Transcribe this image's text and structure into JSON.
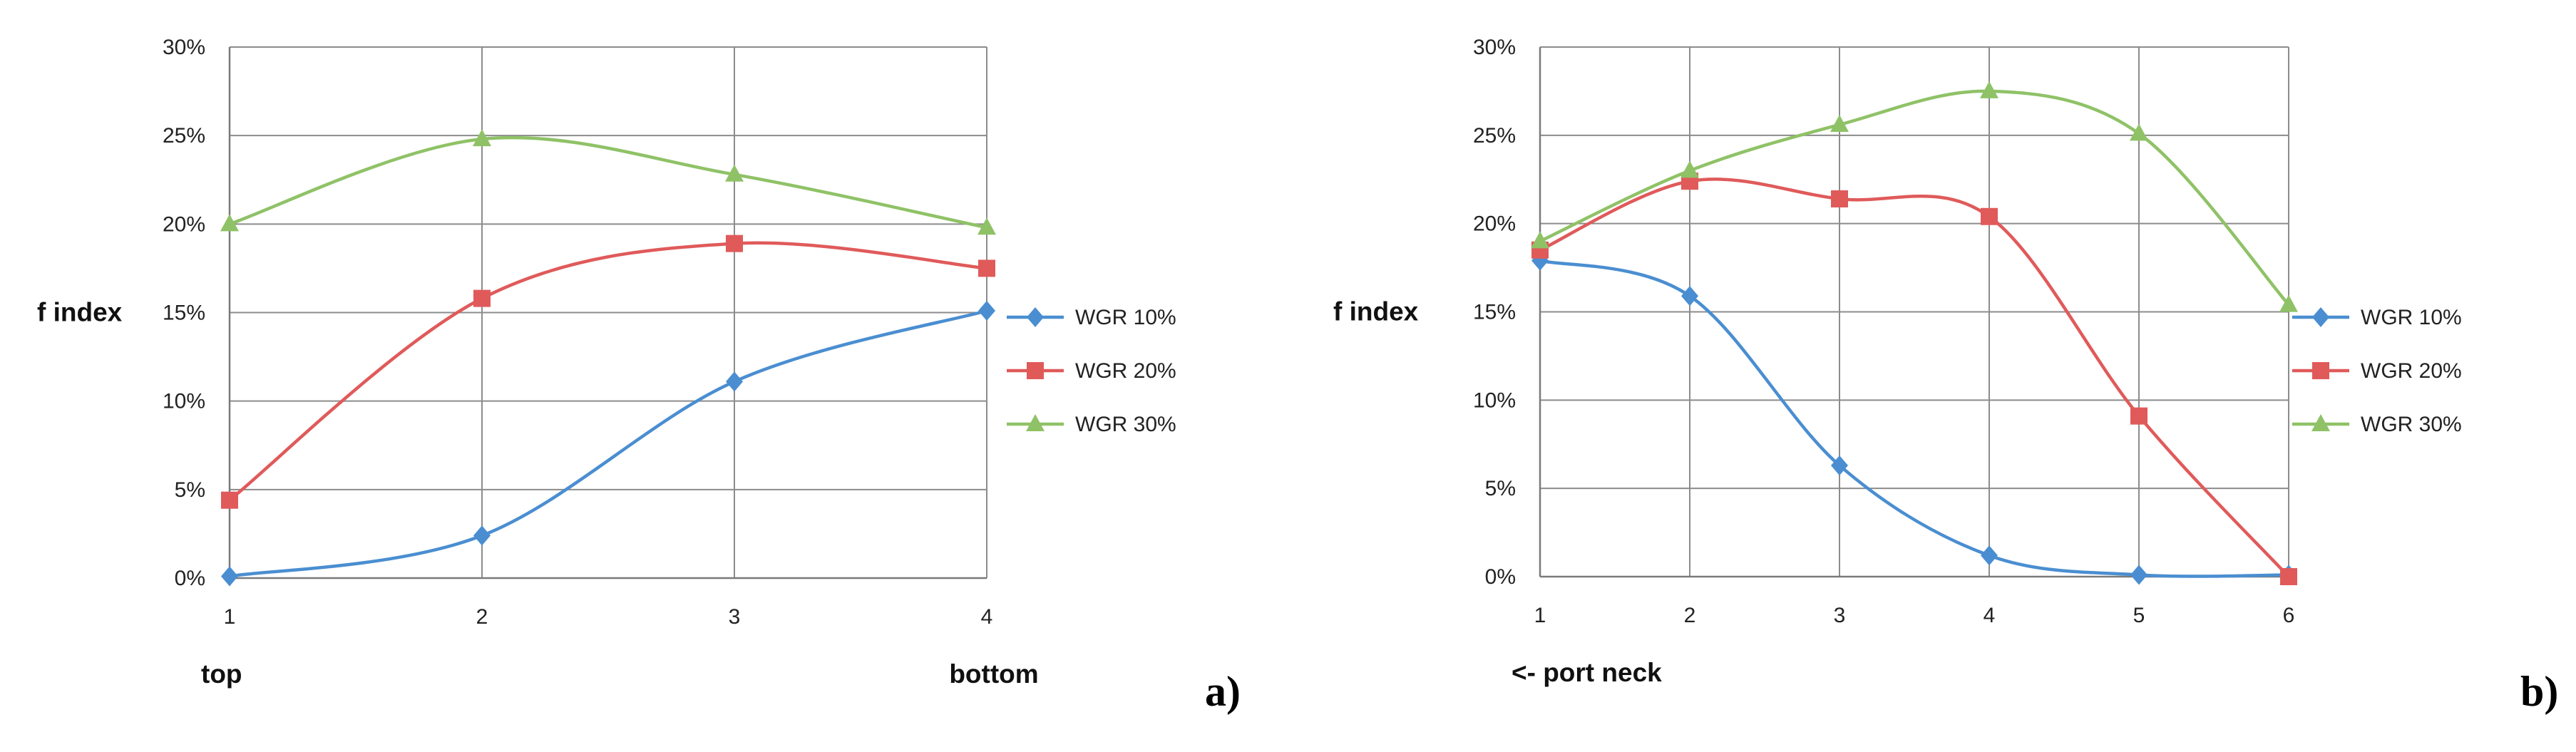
{
  "chart_data": [
    {
      "type": "line",
      "panel_label": "a)",
      "ylabel": "f index",
      "x": [
        1,
        2,
        3,
        4
      ],
      "x_tick_labels": [
        "1",
        "2",
        "3",
        "4"
      ],
      "x_annotations": [
        {
          "text": "top",
          "at": 1
        },
        {
          "text": "bottom",
          "at": 4
        }
      ],
      "ylim": [
        0,
        0.3
      ],
      "y_ticks": [
        "0%",
        "5%",
        "10%",
        "15%",
        "20%",
        "25%",
        "30%"
      ],
      "grid": true,
      "legend_position": "right",
      "series": [
        {
          "name": "WGR 10%",
          "color": "#4a8ed1",
          "marker": "diamond",
          "values": [
            0.001,
            0.024,
            0.111,
            0.151
          ]
        },
        {
          "name": "WGR 20%",
          "color": "#e05a5a",
          "marker": "square",
          "values": [
            0.044,
            0.158,
            0.189,
            0.175
          ]
        },
        {
          "name": "WGR 30%",
          "color": "#8fc267",
          "marker": "triangle",
          "values": [
            0.2,
            0.248,
            0.228,
            0.198
          ]
        }
      ]
    },
    {
      "type": "line",
      "panel_label": "b)",
      "ylabel": "f index",
      "x": [
        1,
        2,
        3,
        4,
        5,
        6
      ],
      "x_tick_labels": [
        "1",
        "2",
        "3",
        "4",
        "5",
        "6"
      ],
      "x_annotations": [
        {
          "text": "<- port neck",
          "at": 1
        }
      ],
      "ylim": [
        0,
        0.3
      ],
      "y_ticks": [
        "0%",
        "5%",
        "10%",
        "15%",
        "20%",
        "25%",
        "30%"
      ],
      "grid": true,
      "legend_position": "right",
      "series": [
        {
          "name": "WGR 10%",
          "color": "#4a8ed1",
          "marker": "diamond",
          "values": [
            0.179,
            0.159,
            0.063,
            0.012,
            0.001,
            0.001
          ]
        },
        {
          "name": "WGR 20%",
          "color": "#e05a5a",
          "marker": "square",
          "values": [
            0.185,
            0.224,
            0.214,
            0.204,
            0.091,
            0.0
          ]
        },
        {
          "name": "WGR 30%",
          "color": "#8fc267",
          "marker": "triangle",
          "values": [
            0.19,
            0.23,
            0.256,
            0.275,
            0.251,
            0.154
          ]
        }
      ]
    }
  ]
}
